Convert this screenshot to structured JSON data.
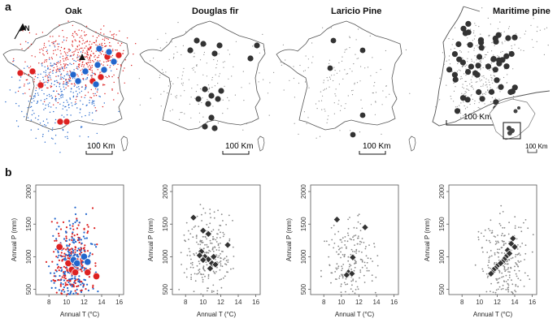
{
  "panels": {
    "a": "a",
    "b": "b"
  },
  "maps": [
    {
      "title": "Oak",
      "scale": "100 Km"
    },
    {
      "title": "Douglas fir",
      "scale": "100 Km"
    },
    {
      "title": "Laricio Pine",
      "scale": "100 Km"
    },
    {
      "title": "Maritime pine",
      "scale": "100 Km",
      "inset_scale": "100 Km"
    }
  ],
  "north_label": "N",
  "colors": {
    "oak_red": "#dd2222",
    "oak_blue": "#2266cc",
    "dark_marker": "#333333",
    "grey_point": "#888888"
  },
  "chart_data": [
    {
      "type": "scatter",
      "title": "",
      "xlabel": "Annual T (°C)",
      "ylabel": "Annual P (mm)",
      "xlim": [
        6.5,
        16.5
      ],
      "ylim": [
        420,
        2100
      ],
      "xticks": [
        8,
        10,
        12,
        14,
        16
      ],
      "yticks": [
        500,
        1000,
        1500,
        2000
      ],
      "series": [
        {
          "color": "red",
          "values": [
            [
              10.2,
              900
            ],
            [
              10.6,
              800
            ],
            [
              11.0,
              760
            ],
            [
              12.4,
              760
            ],
            [
              13.4,
              700
            ],
            [
              9.2,
              1150
            ]
          ]
        },
        {
          "color": "blue",
          "values": [
            [
              10.8,
              950
            ],
            [
              11.2,
              900
            ],
            [
              12.0,
              1000
            ],
            [
              12.4,
              920
            ]
          ]
        }
      ]
    },
    {
      "type": "scatter",
      "title": "",
      "xlabel": "Annual T (°C)",
      "ylabel": "Annual P (mm)",
      "xlim": [
        6.5,
        16.5
      ],
      "ylim": [
        420,
        2100
      ],
      "xticks": [
        8,
        10,
        12,
        14,
        16
      ],
      "yticks": [
        500,
        1000,
        1500,
        2000
      ],
      "series": [
        {
          "color": "dark",
          "values": [
            [
              8.9,
              1600
            ],
            [
              10.0,
              1400
            ],
            [
              10.6,
              1350
            ],
            [
              12.8,
              1180
            ],
            [
              9.8,
              1080
            ],
            [
              10.2,
              1000
            ],
            [
              10.6,
              960
            ],
            [
              11.0,
              900
            ],
            [
              10.8,
              820
            ],
            [
              11.4,
              880
            ],
            [
              10.0,
              950
            ],
            [
              9.6,
              1020
            ],
            [
              11.2,
              1000
            ]
          ]
        }
      ]
    },
    {
      "type": "scatter",
      "title": "",
      "xlabel": "Annual T (°C)",
      "ylabel": "Annual P (mm)",
      "xlim": [
        6.5,
        16.5
      ],
      "ylim": [
        420,
        2100
      ],
      "xticks": [
        8,
        10,
        12,
        14,
        16
      ],
      "yticks": [
        500,
        1000,
        1500,
        2000
      ],
      "series": [
        {
          "color": "dark",
          "values": [
            [
              9.5,
              1570
            ],
            [
              12.7,
              1450
            ],
            [
              11.3,
              990
            ],
            [
              10.8,
              760
            ],
            [
              11.2,
              740
            ],
            [
              10.6,
              720
            ]
          ]
        }
      ]
    },
    {
      "type": "scatter",
      "title": "",
      "xlabel": "Annual T (°C)",
      "ylabel": "Annual P (mm)",
      "xlim": [
        6.5,
        16.5
      ],
      "ylim": [
        420,
        2100
      ],
      "xticks": [
        8,
        10,
        12,
        14,
        16
      ],
      "yticks": [
        500,
        1000,
        1500,
        2000
      ],
      "series": [
        {
          "color": "dark",
          "values": [
            [
              13.8,
              1280
            ],
            [
              13.6,
              1200
            ],
            [
              13.2,
              1100
            ],
            [
              13.0,
              1000
            ],
            [
              12.8,
              960
            ],
            [
              12.6,
              920
            ],
            [
              12.2,
              880
            ],
            [
              12.0,
              860
            ],
            [
              11.8,
              820
            ],
            [
              11.6,
              800
            ],
            [
              11.4,
              760
            ],
            [
              13.4,
              1050
            ],
            [
              14.0,
              1150
            ],
            [
              12.4,
              900
            ],
            [
              11.3,
              740
            ]
          ]
        }
      ]
    }
  ]
}
